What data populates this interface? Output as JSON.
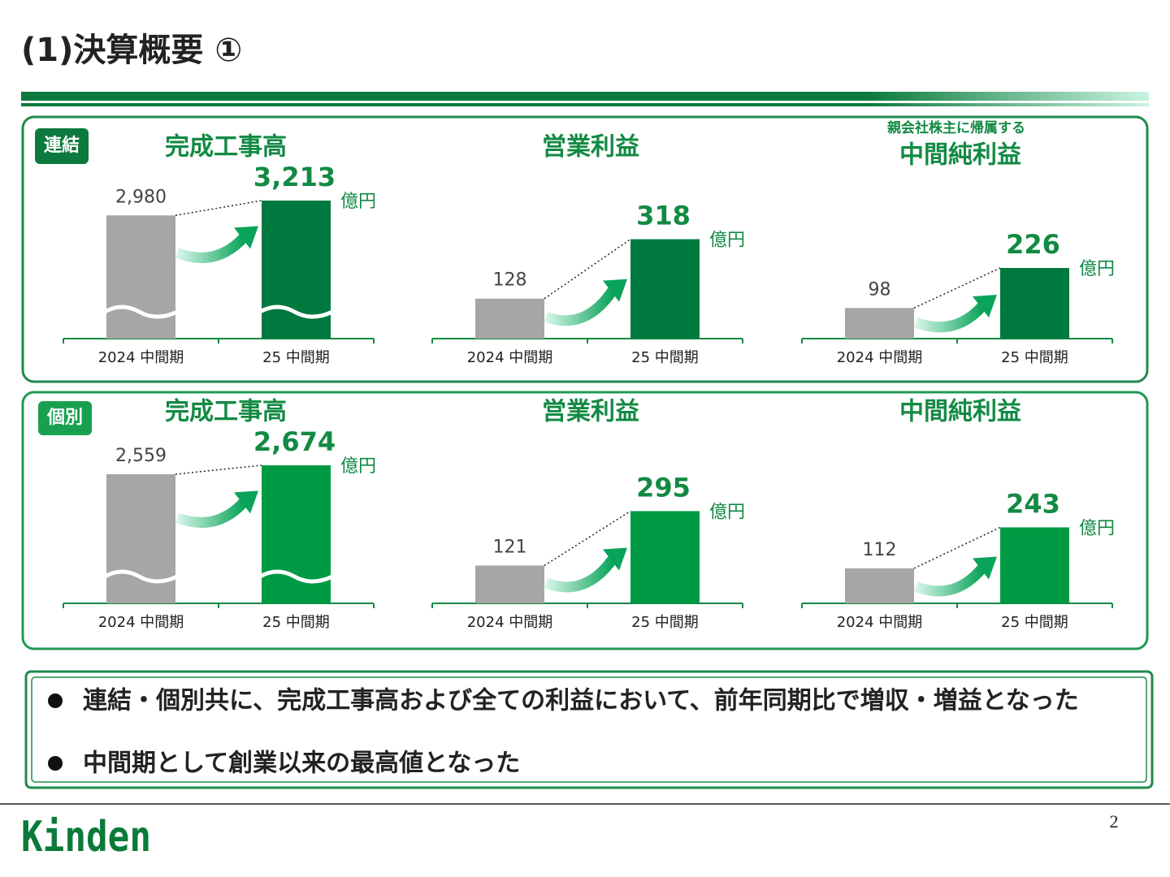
{
  "title": "(1)決算概要 ①",
  "sections": [
    {
      "label": "連結"
    },
    {
      "label": "個別"
    }
  ],
  "chart_data": [
    {
      "type": "bar",
      "title": "完成工事高",
      "categories": [
        "2024 中間期",
        "25 中間期"
      ],
      "values": [
        2980,
        3213
      ],
      "value_labels": [
        "2,980",
        "3,213"
      ],
      "unit": "億円",
      "colors": [
        "#a6a6a6",
        "#00793f"
      ],
      "axis_break": true
    },
    {
      "type": "bar",
      "title": "営業利益",
      "categories": [
        "2024 中間期",
        "25 中間期"
      ],
      "values": [
        128,
        318
      ],
      "unit": "億円",
      "colors": [
        "#a6a6a6",
        "#00793f"
      ],
      "axis_break": false
    },
    {
      "type": "bar",
      "subtitle": "親会社株主に帰属する",
      "title": "中間純利益",
      "categories": [
        "2024 中間期",
        "25 中間期"
      ],
      "values": [
        98,
        226
      ],
      "unit": "億円",
      "colors": [
        "#a6a6a6",
        "#00793f"
      ],
      "axis_break": false
    },
    {
      "type": "bar",
      "title": "完成工事高",
      "categories": [
        "2024 中間期",
        "25 中間期"
      ],
      "values": [
        2559,
        2674
      ],
      "value_labels": [
        "2,559",
        "2,674"
      ],
      "unit": "億円",
      "colors": [
        "#a6a6a6",
        "#009a44"
      ],
      "axis_break": true
    },
    {
      "type": "bar",
      "title": "営業利益",
      "categories": [
        "2024 中間期",
        "25 中間期"
      ],
      "values": [
        121,
        295
      ],
      "unit": "億円",
      "colors": [
        "#a6a6a6",
        "#009a44"
      ],
      "axis_break": false
    },
    {
      "type": "bar",
      "title": "中間純利益",
      "categories": [
        "2024 中間期",
        "25 中間期"
      ],
      "values": [
        112,
        243
      ],
      "unit": "億円",
      "colors": [
        "#a6a6a6",
        "#009a44"
      ],
      "axis_break": false
    }
  ],
  "bullets": [
    "連結・個別共に、完成工事高および全ての利益において、前年同期比で増収・増益となった",
    "中間期として創業以来の最高値となった"
  ],
  "footer": {
    "logo": "Kinden",
    "page": "2"
  }
}
